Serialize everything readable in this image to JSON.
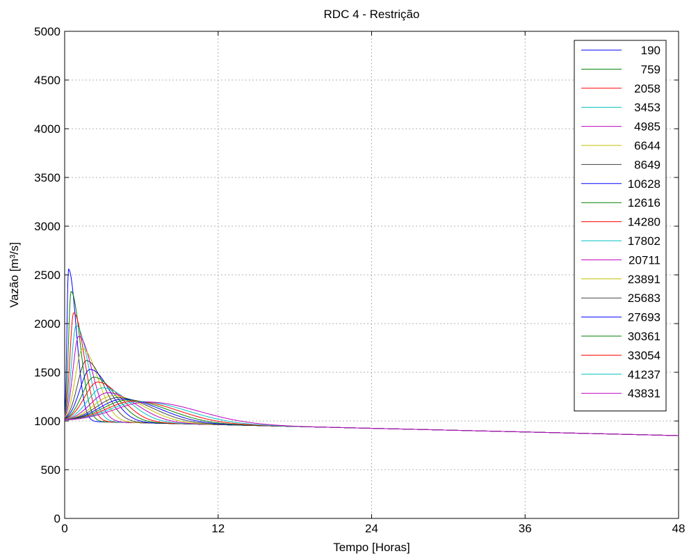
{
  "chart_data": {
    "type": "line",
    "title": "RDC 4 - Restrição",
    "xlabel": "Tempo [Horas]",
    "ylabel": "Vazão [m³/s]",
    "xlim": [
      0,
      48
    ],
    "ylim": [
      0,
      5000
    ],
    "xticks": [
      "0",
      "12",
      "24",
      "36",
      "48"
    ],
    "yticks": [
      "0",
      "500",
      "1000",
      "1500",
      "2000",
      "2500",
      "3000",
      "3500",
      "4000",
      "4500",
      "5000"
    ],
    "grid": true,
    "legend_position": "top-right",
    "baseline": {
      "start": 1000,
      "end": 850
    },
    "series": [
      {
        "name": "190",
        "color": "#0000ff",
        "peak_x": 0.3,
        "peak_y": 2560
      },
      {
        "name": "759",
        "color": "#008000",
        "peak_x": 0.5,
        "peak_y": 2330
      },
      {
        "name": "2058",
        "color": "#ff0000",
        "peak_x": 0.7,
        "peak_y": 2110
      },
      {
        "name": "3453",
        "color": "#00bfbf",
        "peak_x": 0.9,
        "peak_y": 1980
      },
      {
        "name": "4985",
        "color": "#bf00bf",
        "peak_x": 1.1,
        "peak_y": 1870
      },
      {
        "name": "6644",
        "color": "#bfbf00",
        "peak_x": 1.4,
        "peak_y": 1740
      },
      {
        "name": "8649",
        "color": "#404040",
        "peak_x": 1.7,
        "peak_y": 1620
      },
      {
        "name": "10628",
        "color": "#0000ff",
        "peak_x": 2.0,
        "peak_y": 1530
      },
      {
        "name": "12616",
        "color": "#008000",
        "peak_x": 2.3,
        "peak_y": 1450
      },
      {
        "name": "14280",
        "color": "#ff0000",
        "peak_x": 2.6,
        "peak_y": 1400
      },
      {
        "name": "17802",
        "color": "#00bfbf",
        "peak_x": 3.0,
        "peak_y": 1340
      },
      {
        "name": "20711",
        "color": "#bf00bf",
        "peak_x": 3.4,
        "peak_y": 1290
      },
      {
        "name": "23891",
        "color": "#bfbf00",
        "peak_x": 3.8,
        "peak_y": 1260
      },
      {
        "name": "25683",
        "color": "#404040",
        "peak_x": 4.2,
        "peak_y": 1240
      },
      {
        "name": "27693",
        "color": "#0000ff",
        "peak_x": 4.6,
        "peak_y": 1225
      },
      {
        "name": "30361",
        "color": "#008000",
        "peak_x": 5.0,
        "peak_y": 1215
      },
      {
        "name": "33054",
        "color": "#ff0000",
        "peak_x": 5.5,
        "peak_y": 1205
      },
      {
        "name": "41237",
        "color": "#00bfbf",
        "peak_x": 6.0,
        "peak_y": 1200
      },
      {
        "name": "43831",
        "color": "#bf00bf",
        "peak_x": 6.6,
        "peak_y": 1195
      }
    ]
  }
}
